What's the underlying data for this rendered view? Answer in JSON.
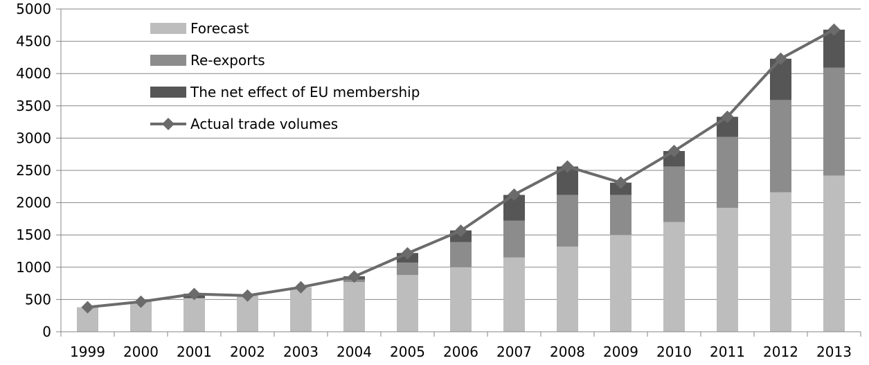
{
  "chart_data": {
    "type": "bar",
    "stacked": true,
    "categories": [
      "1999",
      "2000",
      "2001",
      "2002",
      "2003",
      "2004",
      "2005",
      "2006",
      "2007",
      "2008",
      "2009",
      "2010",
      "2011",
      "2012",
      "2013"
    ],
    "series": [
      {
        "name": "Forecast",
        "kind": "bar",
        "color": "#bdbdbd",
        "values": [
          380,
          470,
          520,
          560,
          690,
          770,
          880,
          1000,
          1150,
          1320,
          1500,
          1700,
          1920,
          2160,
          2420
        ]
      },
      {
        "name": "Re-exports",
        "kind": "bar",
        "color": "#8c8c8c",
        "values": [
          0,
          0,
          0,
          0,
          0,
          40,
          190,
          390,
          570,
          800,
          620,
          860,
          1100,
          1430,
          1670
        ]
      },
      {
        "name": "The net effect of EU membership",
        "kind": "bar",
        "color": "#565656",
        "values": [
          0,
          0,
          70,
          0,
          0,
          50,
          150,
          180,
          400,
          440,
          190,
          240,
          310,
          640,
          590
        ]
      },
      {
        "name": "Actual trade volumes",
        "kind": "line",
        "color": "#6b6b6b",
        "values": [
          380,
          465,
          585,
          560,
          690,
          855,
          1215,
          1565,
          2125,
          2560,
          2310,
          2800,
          3330,
          4230,
          4680
        ]
      }
    ],
    "y_ticks": [
      "0",
      "500",
      "1000",
      "1500",
      "2000",
      "2500",
      "3000",
      "3500",
      "4000",
      "4500",
      "5000"
    ],
    "ylim": [
      0,
      5000
    ],
    "grid": true,
    "legend_position": "top-left",
    "title": "",
    "xlabel": "",
    "ylabel": ""
  }
}
